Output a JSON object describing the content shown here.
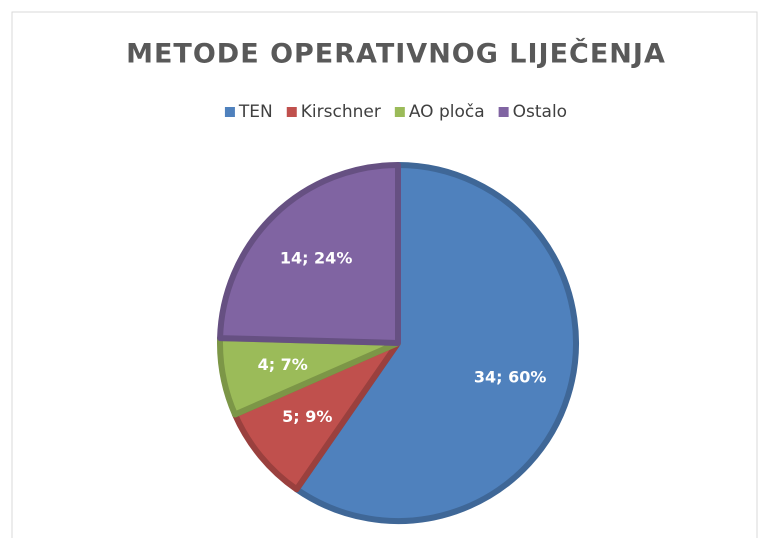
{
  "chart_data": {
    "type": "pie",
    "title": "METODE OPERATIVNOG LIJEČENJA",
    "categories": [
      "TEN",
      "Kirschner",
      "AO ploča",
      "Ostalo"
    ],
    "values": [
      34,
      5,
      4,
      14
    ],
    "value_labels": [
      "34; 60%",
      "5; 9%",
      "4; 7%",
      "14; 24%"
    ],
    "colors": [
      "#4f81bd",
      "#c0504d",
      "#9bbb59",
      "#8064a2"
    ],
    "legend": "top"
  }
}
